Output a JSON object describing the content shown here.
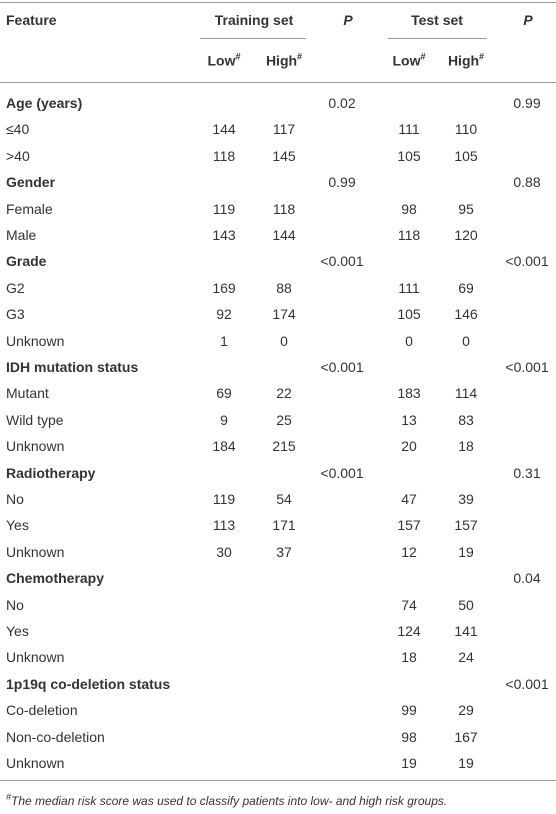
{
  "header": {
    "feature": "Feature",
    "training_set": "Training set",
    "test_set": "Test set",
    "p_train": "P",
    "p_test": "P",
    "low": {
      "text": "Low",
      "sup": "#"
    },
    "high": {
      "text": "High",
      "sup": "#"
    }
  },
  "sections": [
    {
      "title": "Age (years)",
      "p_train": 0.02,
      "p_test": 0.99,
      "rows": [
        {
          "label": "≤40",
          "values": [
            144,
            117,
            111,
            110
          ]
        },
        {
          "label": ">40",
          "values": [
            118,
            145,
            105,
            105
          ]
        }
      ]
    },
    {
      "title": "Gender",
      "p_train": 0.99,
      "p_test": 0.88,
      "rows": [
        {
          "label": "Female",
          "values": [
            119,
            118,
            98,
            95
          ]
        },
        {
          "label": "Male",
          "values": [
            143,
            144,
            118,
            120
          ]
        }
      ]
    },
    {
      "title": "Grade",
      "p_train": "<0.001",
      "p_test": "<0.001",
      "rows": [
        {
          "label": "G2",
          "values": [
            169,
            88,
            111,
            69
          ]
        },
        {
          "label": "G3",
          "values": [
            92,
            174,
            105,
            146
          ]
        },
        {
          "label": "Unknown",
          "values": [
            1,
            0,
            0,
            0
          ]
        }
      ]
    },
    {
      "title": "IDH mutation status",
      "p_train": "<0.001",
      "p_test": "<0.001",
      "rows": [
        {
          "label": "Mutant",
          "values": [
            69,
            22,
            183,
            114
          ]
        },
        {
          "label": "Wild type",
          "values": [
            9,
            25,
            13,
            83
          ]
        },
        {
          "label": "Unknown",
          "values": [
            184,
            215,
            20,
            18
          ]
        }
      ]
    },
    {
      "title": "Radiotherapy",
      "p_train": "<0.001",
      "p_test": 0.31,
      "rows": [
        {
          "label": "No",
          "values": [
            119,
            54,
            47,
            39
          ]
        },
        {
          "label": "Yes",
          "values": [
            113,
            171,
            157,
            157
          ]
        },
        {
          "label": "Unknown",
          "values": [
            30,
            37,
            12,
            19
          ]
        }
      ]
    },
    {
      "title": "Chemotherapy",
      "p_train": null,
      "p_test": 0.04,
      "rows": [
        {
          "label": "No",
          "values": [
            null,
            null,
            74,
            50
          ]
        },
        {
          "label": "Yes",
          "values": [
            null,
            null,
            124,
            141
          ]
        },
        {
          "label": "Unknown",
          "values": [
            null,
            null,
            18,
            24
          ]
        }
      ]
    },
    {
      "title": "1p19q co-deletion status",
      "p_train": null,
      "p_test": "<0.001",
      "rows": [
        {
          "label": "Co-deletion",
          "values": [
            null,
            null,
            99,
            29
          ]
        },
        {
          "label": "Non-co-deletion",
          "values": [
            null,
            null,
            98,
            167
          ]
        },
        {
          "label": "Unknown",
          "values": [
            null,
            null,
            19,
            19
          ]
        }
      ]
    }
  ],
  "footnote": {
    "sup": "#",
    "text": "The median risk score was used to classify patients into low- and high risk groups."
  }
}
